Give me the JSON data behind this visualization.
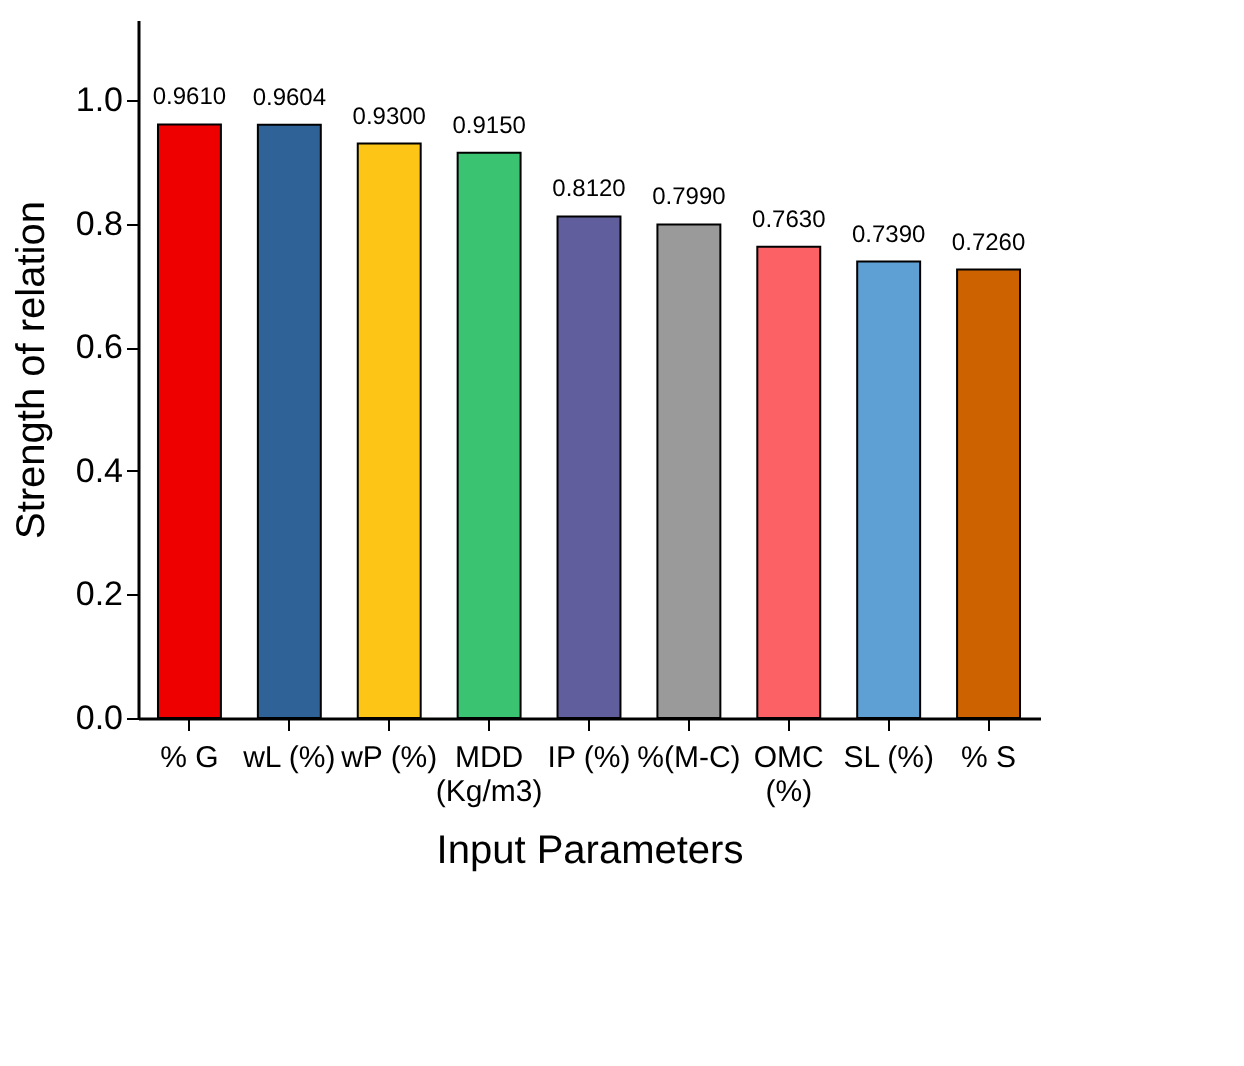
{
  "chart_data": {
    "type": "bar",
    "xlabel": "Input Parameters",
    "ylabel": "Strength of relation",
    "categories": [
      "% G",
      "wL (%)",
      "wP (%)",
      "MDD\n(Kg/m3)",
      "IP (%)",
      "%(M-C)",
      "OMC\n(%)",
      "SL (%)",
      "% S"
    ],
    "values": [
      0.961,
      0.9604,
      0.93,
      0.915,
      0.812,
      0.799,
      0.763,
      0.739,
      0.726
    ],
    "value_labels": [
      "0.9610",
      "0.9604",
      "0.9300",
      "0.9150",
      "0.8120",
      "0.7990",
      "0.7630",
      "0.7390",
      "0.7260"
    ],
    "colors": [
      "#ee0000",
      "#2f6296",
      "#fdc515",
      "#3ac472",
      "#605e9c",
      "#9a9a9a",
      "#fc6265",
      "#5fa0d4",
      "#cc6200"
    ],
    "ylim": [
      0,
      1.13
    ],
    "yticks": [
      {
        "value": 0,
        "label": "0.0"
      },
      {
        "value": 0.2,
        "label": "0.2"
      },
      {
        "value": 0.4,
        "label": "0.4"
      },
      {
        "value": 0.6,
        "label": "0.6"
      },
      {
        "value": 0.8,
        "label": "0.8"
      },
      {
        "value": 1,
        "label": "1.0"
      }
    ],
    "grid": false
  }
}
